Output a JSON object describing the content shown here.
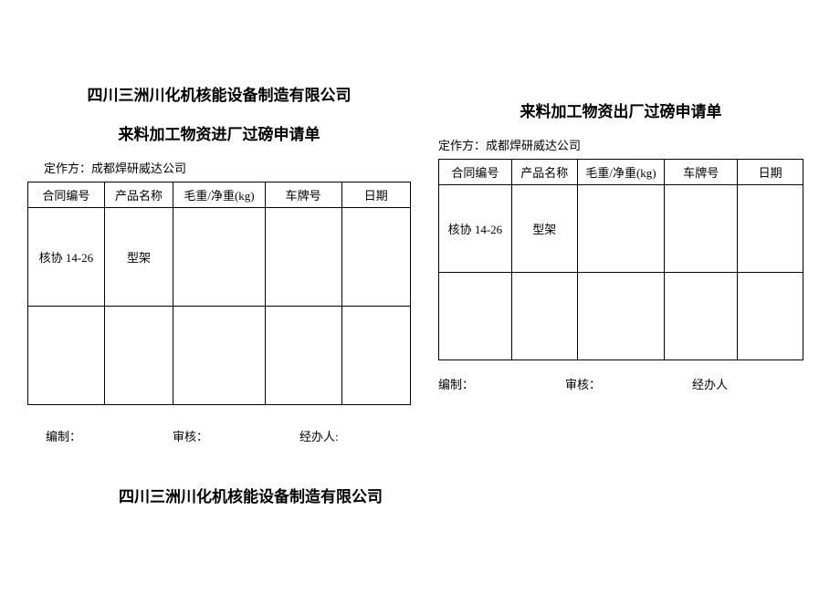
{
  "company": "四川三洲川化机核能设备制造有限公司",
  "left": {
    "formTitle": "来料加工物资进厂过磅申请单",
    "authorLabel": "定作方：",
    "authorValue": "成都焊研威达公司",
    "headers": {
      "contract": "合同编号",
      "product": "产品名称",
      "weight": "毛重/净重(kg)",
      "plate": "车牌号",
      "date": "日期"
    },
    "rows": [
      {
        "contract": "核协 14-26",
        "product": "型架",
        "weight": "",
        "plate": "",
        "date": ""
      },
      {
        "contract": "",
        "product": "",
        "weight": "",
        "plate": "",
        "date": ""
      }
    ],
    "footer": {
      "compile": "编制：",
      "audit": "审核：",
      "handler": "经办人:"
    }
  },
  "right": {
    "formTitle": "来料加工物资出厂过磅申请单",
    "authorLabel": "定作方：",
    "authorValue": "成都焊研威达公司",
    "headers": {
      "contract": "合同编号",
      "product": "产品名称",
      "weight": "毛重/净重(kg)",
      "plate": "车牌号",
      "date": "日期"
    },
    "rows": [
      {
        "contract": "核协 14-26",
        "product": "型架",
        "weight": "",
        "plate": "",
        "date": ""
      },
      {
        "contract": "",
        "product": "",
        "weight": "",
        "plate": "",
        "date": ""
      }
    ],
    "footer": {
      "compile": "编制：",
      "audit": "审核：",
      "handler": "经办人"
    }
  },
  "bottomCompany": "四川三洲川化机核能设备制造有限公司"
}
